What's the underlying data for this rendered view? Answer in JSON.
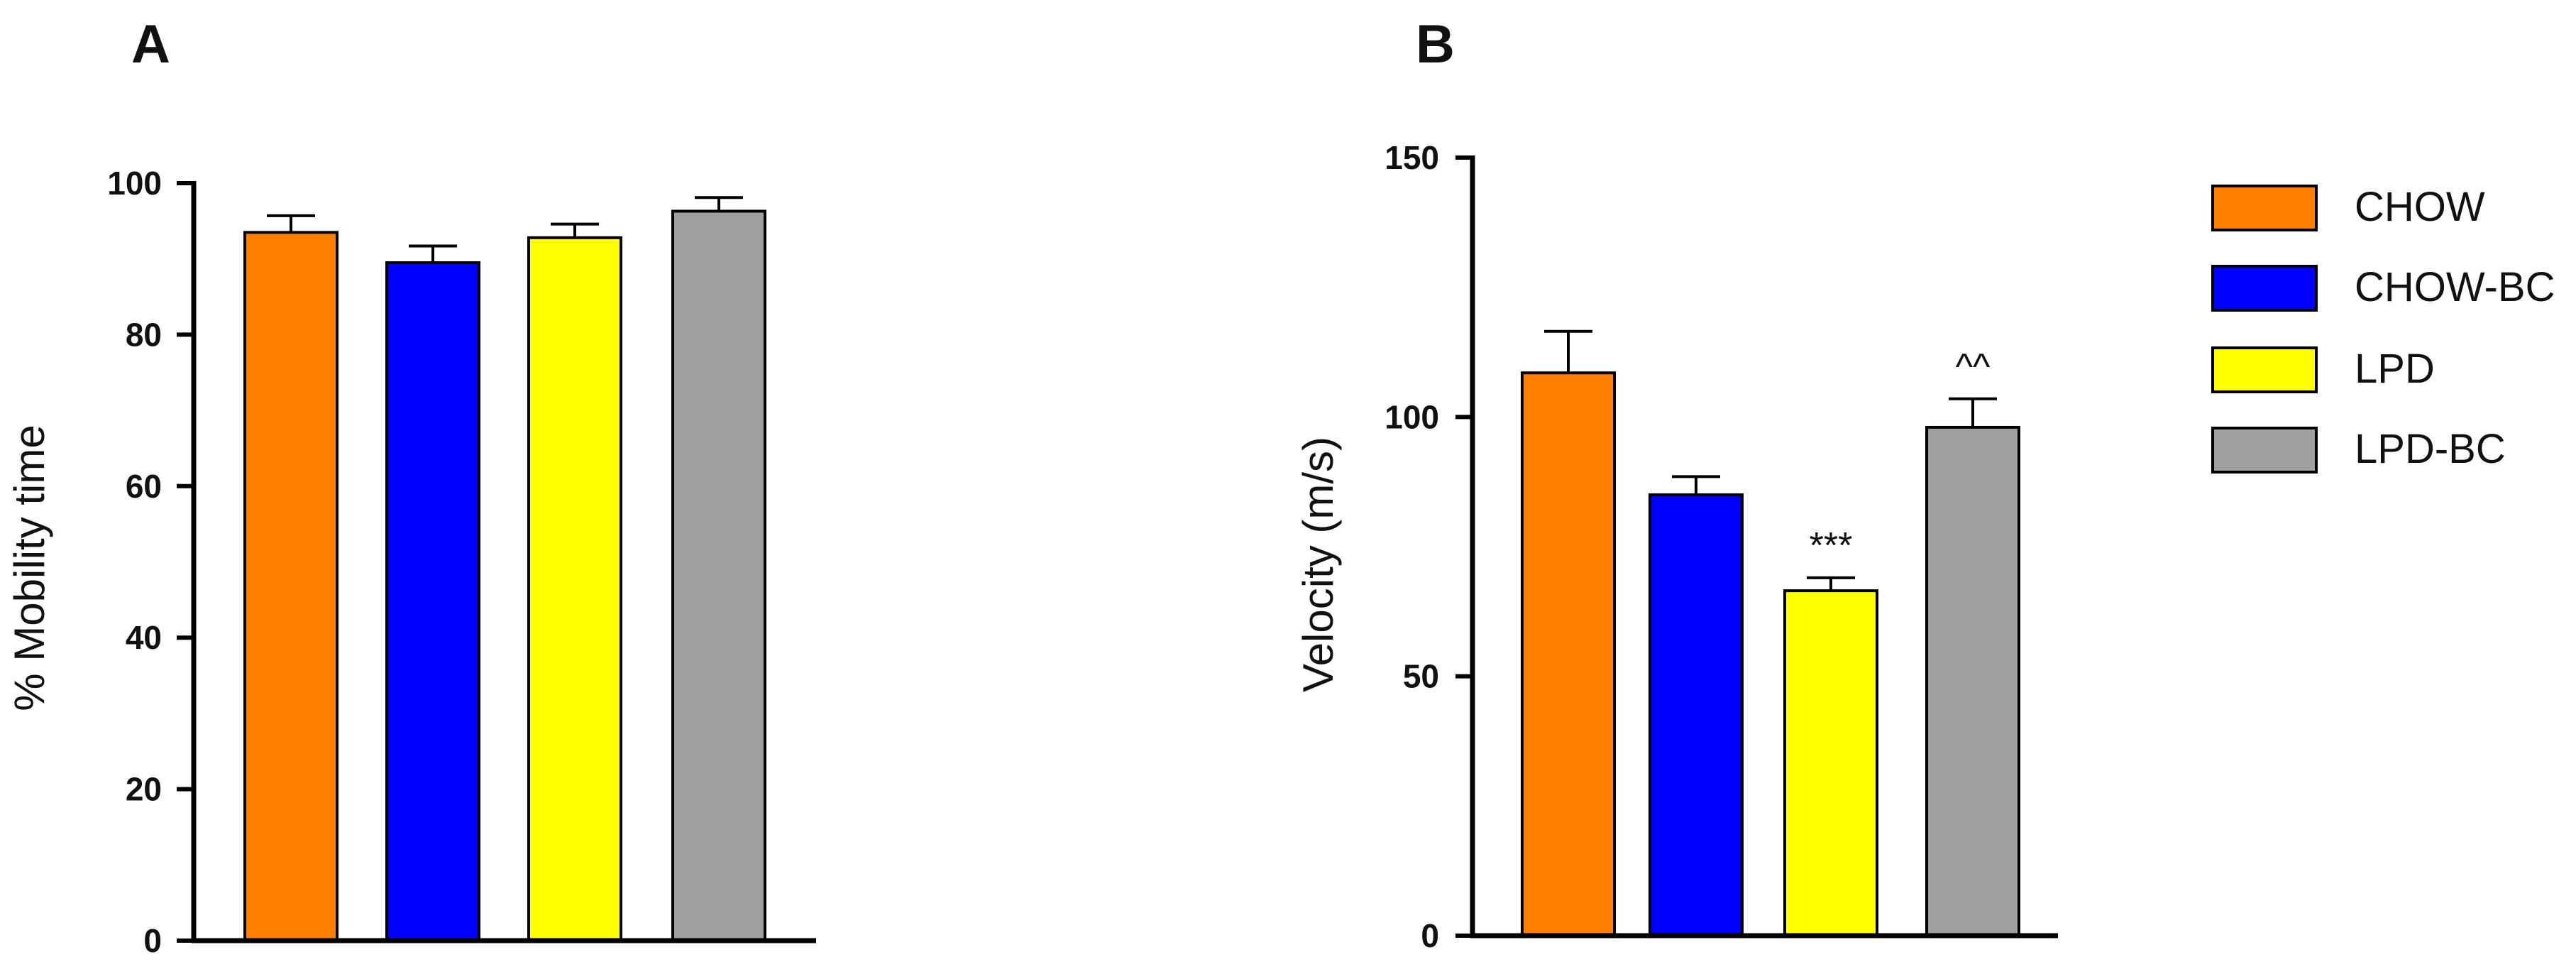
{
  "chart_data": [
    {
      "panel": "A",
      "type": "bar",
      "categories": [
        "CHOW",
        "CHOW-BC",
        "LPD",
        "LPD-BC"
      ],
      "values": [
        93.5,
        89.5,
        92.8,
        96.3
      ],
      "errors": [
        2.2,
        2.2,
        1.8,
        1.8
      ],
      "colors": [
        "#ff7f00",
        "#0000ff",
        "#ffff00",
        "#a0a0a0"
      ],
      "annotations": [
        "",
        "",
        "",
        ""
      ],
      "ylabel": "% Mobility time",
      "ylim": [
        0,
        100
      ],
      "yticks": [
        0,
        20,
        40,
        60,
        80,
        100
      ],
      "grid": false
    },
    {
      "panel": "B",
      "type": "bar",
      "categories": [
        "CHOW",
        "CHOW-BC",
        "LPD",
        "LPD-BC"
      ],
      "values": [
        108.5,
        85,
        66.5,
        98
      ],
      "errors": [
        8,
        3.5,
        2.5,
        5.5
      ],
      "colors": [
        "#ff7f00",
        "#0000ff",
        "#ffff00",
        "#a0a0a0"
      ],
      "annotations": [
        "",
        "",
        "***",
        "^^"
      ],
      "ylabel": "Velocity (m/s)",
      "ylim": [
        0,
        150
      ],
      "yticks": [
        0,
        50,
        100,
        150
      ],
      "grid": false
    }
  ],
  "legend": {
    "placement": "right",
    "items": [
      {
        "label": "CHOW",
        "color": "#ff7f00"
      },
      {
        "label": "CHOW-BC",
        "color": "#0000ff"
      },
      {
        "label": "LPD",
        "color": "#ffff00"
      },
      {
        "label": "LPD-BC",
        "color": "#a0a0a0"
      }
    ]
  }
}
